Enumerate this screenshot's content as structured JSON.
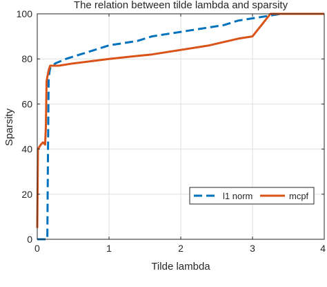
{
  "chart_data": {
    "type": "line",
    "title": "The relation between tilde lambda and sparsity",
    "xlabel": "Tilde lambda",
    "ylabel": "Sparsity",
    "xlim": [
      0,
      4
    ],
    "ylim": [
      0,
      100
    ],
    "xticks": [
      0,
      1,
      2,
      3,
      4
    ],
    "yticks": [
      0,
      20,
      40,
      60,
      80,
      100
    ],
    "grid": true,
    "legend_position": "bottom-right",
    "series": [
      {
        "name": "l1 norm",
        "color": "#0072BD",
        "dash": "dashed",
        "points": [
          [
            0.0,
            0
          ],
          [
            0.14,
            0
          ],
          [
            0.15,
            40
          ],
          [
            0.16,
            72
          ],
          [
            0.18,
            76
          ],
          [
            0.25,
            78
          ],
          [
            0.4,
            80
          ],
          [
            0.6,
            82
          ],
          [
            0.8,
            84
          ],
          [
            1.0,
            86
          ],
          [
            1.2,
            87
          ],
          [
            1.4,
            88
          ],
          [
            1.6,
            90
          ],
          [
            1.8,
            91
          ],
          [
            2.0,
            92
          ],
          [
            2.2,
            93
          ],
          [
            2.4,
            94
          ],
          [
            2.6,
            95
          ],
          [
            2.8,
            97
          ],
          [
            3.0,
            98
          ],
          [
            3.2,
            99
          ],
          [
            3.4,
            100
          ],
          [
            4.0,
            100
          ]
        ]
      },
      {
        "name": "mcpf",
        "color": "#D95319",
        "dash": "solid",
        "points": [
          [
            0.0,
            5
          ],
          [
            0.01,
            40
          ],
          [
            0.05,
            42
          ],
          [
            0.08,
            43
          ],
          [
            0.11,
            42
          ],
          [
            0.12,
            50
          ],
          [
            0.13,
            70
          ],
          [
            0.14,
            72
          ],
          [
            0.16,
            75
          ],
          [
            0.18,
            77
          ],
          [
            0.3,
            77
          ],
          [
            0.5,
            78
          ],
          [
            0.75,
            79
          ],
          [
            1.0,
            80
          ],
          [
            1.3,
            81
          ],
          [
            1.6,
            82
          ],
          [
            2.0,
            84
          ],
          [
            2.4,
            86
          ],
          [
            2.8,
            89
          ],
          [
            3.0,
            90
          ],
          [
            3.1,
            94
          ],
          [
            3.2,
            98
          ],
          [
            3.25,
            100
          ],
          [
            4.0,
            100
          ]
        ]
      }
    ]
  }
}
